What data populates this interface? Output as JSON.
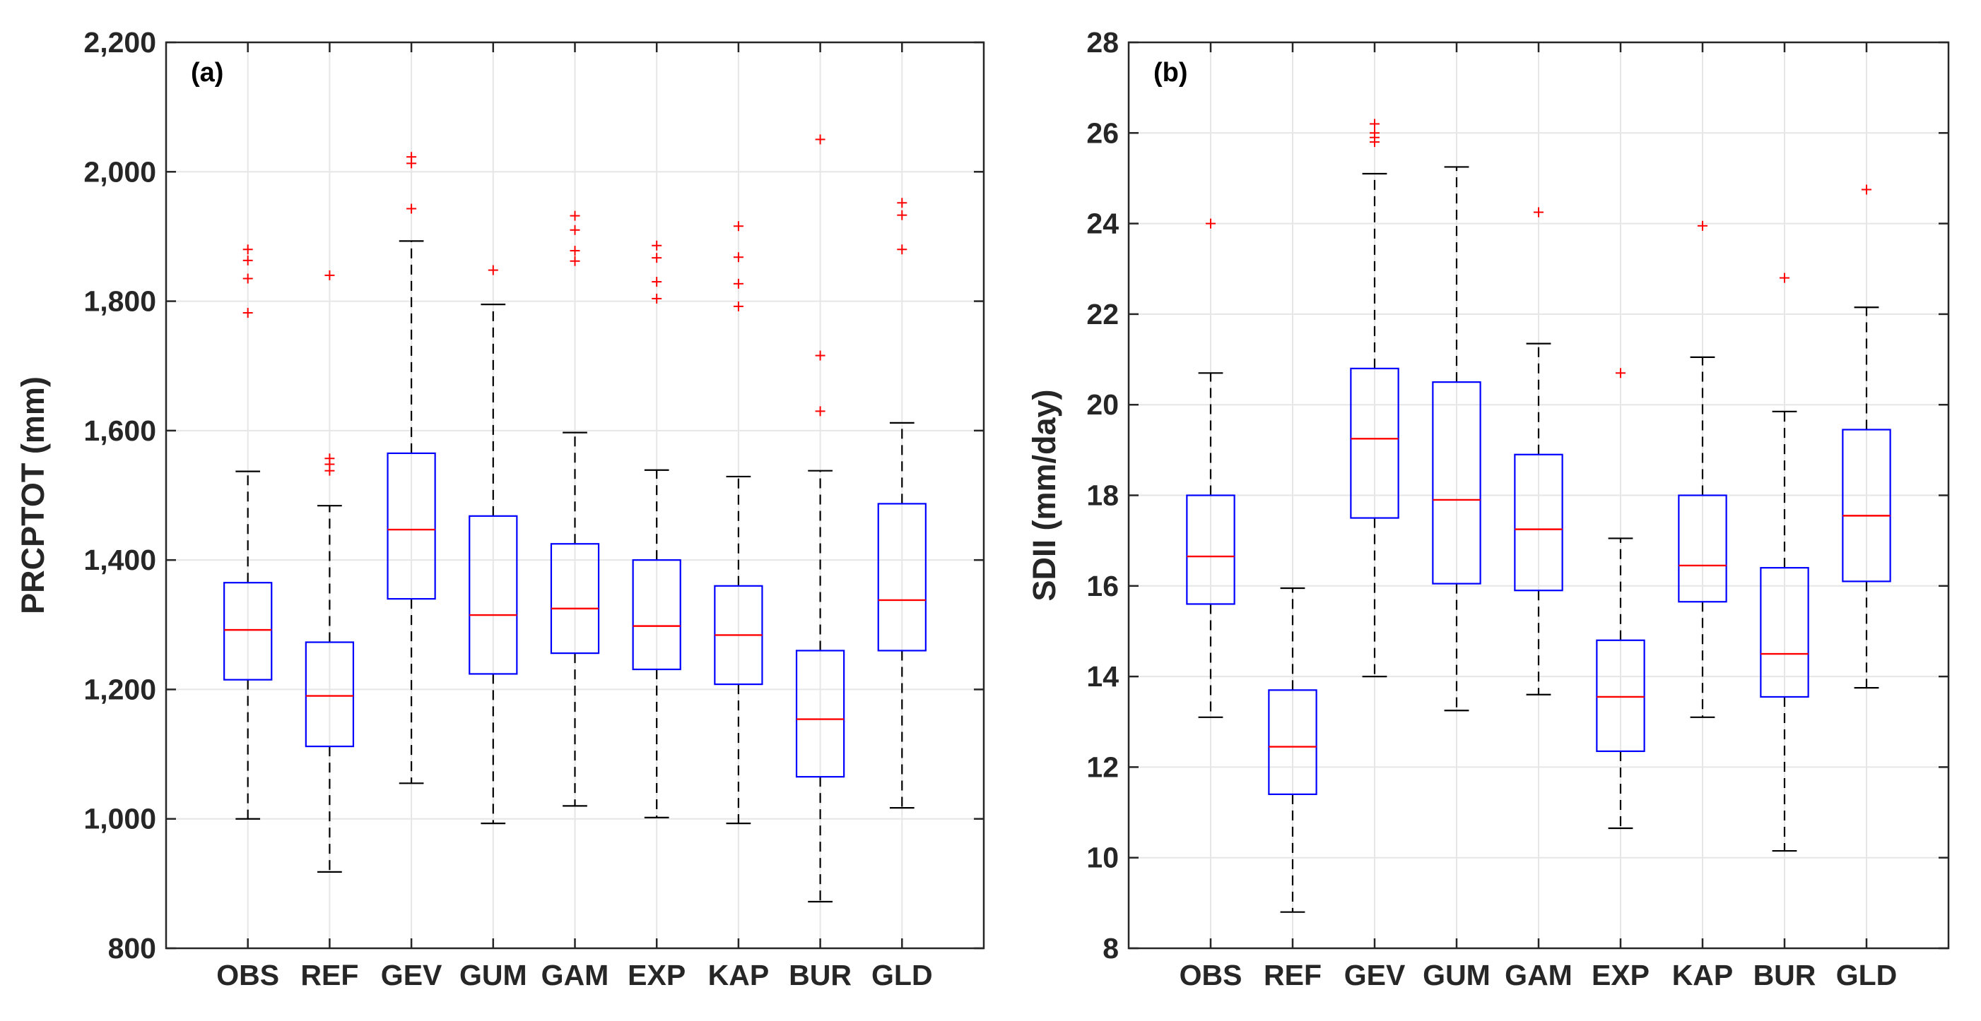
{
  "chart_data": [
    {
      "type": "box",
      "panel_label": "(a)",
      "title": "",
      "xlabel": "",
      "ylabel": "PRCPTOT (mm)",
      "ylim": [
        800,
        2200
      ],
      "yticks": [
        800,
        1000,
        1200,
        1400,
        1600,
        1800,
        2000,
        2200
      ],
      "ytick_labels": [
        "800",
        "1,000",
        "1,200",
        "1,400",
        "1,600",
        "1,800",
        "2,000",
        "2,200"
      ],
      "grid": true,
      "categories": [
        "OBS",
        "REF",
        "GEV",
        "GUM",
        "GAM",
        "EXP",
        "KAP",
        "BUR",
        "GLD"
      ],
      "boxes": [
        {
          "name": "OBS",
          "whisker_low": 1000,
          "q1": 1215,
          "median": 1292,
          "q3": 1365,
          "whisker_high": 1537,
          "outliers": [
            1782,
            1835,
            1863,
            1880
          ]
        },
        {
          "name": "REF",
          "whisker_low": 918,
          "q1": 1112,
          "median": 1190,
          "q3": 1273,
          "whisker_high": 1484,
          "outliers": [
            1538,
            1548,
            1557,
            1840
          ]
        },
        {
          "name": "GEV",
          "whisker_low": 1055,
          "q1": 1340,
          "median": 1447,
          "q3": 1565,
          "whisker_high": 1893,
          "outliers": [
            1943,
            2013,
            2023
          ]
        },
        {
          "name": "GUM",
          "whisker_low": 993,
          "q1": 1224,
          "median": 1315,
          "q3": 1468,
          "whisker_high": 1795,
          "outliers": [
            1848
          ]
        },
        {
          "name": "GAM",
          "whisker_low": 1020,
          "q1": 1256,
          "median": 1325,
          "q3": 1425,
          "whisker_high": 1597,
          "outliers": [
            1862,
            1878,
            1910,
            1932
          ]
        },
        {
          "name": "EXP",
          "whisker_low": 1002,
          "q1": 1231,
          "median": 1298,
          "q3": 1400,
          "whisker_high": 1539,
          "outliers": [
            1804,
            1830,
            1867,
            1886
          ]
        },
        {
          "name": "KAP",
          "whisker_low": 993,
          "q1": 1208,
          "median": 1284,
          "q3": 1360,
          "whisker_high": 1529,
          "outliers": [
            1792,
            1827,
            1868,
            1916
          ]
        },
        {
          "name": "BUR",
          "whisker_low": 872,
          "q1": 1065,
          "median": 1154,
          "q3": 1260,
          "whisker_high": 1538,
          "outliers": [
            1630,
            1716,
            2050
          ]
        },
        {
          "name": "GLD",
          "whisker_low": 1017,
          "q1": 1260,
          "median": 1338,
          "q3": 1487,
          "whisker_high": 1612,
          "outliers": [
            1880,
            1933,
            1952
          ]
        }
      ]
    },
    {
      "type": "box",
      "panel_label": "(b)",
      "title": "",
      "xlabel": "",
      "ylabel": "SDII (mm/day)",
      "ylim": [
        8,
        28
      ],
      "yticks": [
        8,
        10,
        12,
        14,
        16,
        18,
        20,
        22,
        24,
        26,
        28
      ],
      "ytick_labels": [
        "8",
        "10",
        "12",
        "14",
        "16",
        "18",
        "20",
        "22",
        "24",
        "26",
        "28"
      ],
      "grid": true,
      "categories": [
        "OBS",
        "REF",
        "GEV",
        "GUM",
        "GAM",
        "EXP",
        "KAP",
        "BUR",
        "GLD"
      ],
      "boxes": [
        {
          "name": "OBS",
          "whisker_low": 13.1,
          "q1": 15.6,
          "median": 16.65,
          "q3": 18.0,
          "whisker_high": 20.7,
          "outliers": [
            24.0
          ]
        },
        {
          "name": "REF",
          "whisker_low": 8.8,
          "q1": 11.4,
          "median": 12.45,
          "q3": 13.7,
          "whisker_high": 15.95,
          "outliers": []
        },
        {
          "name": "GEV",
          "whisker_low": 14.0,
          "q1": 17.5,
          "median": 19.25,
          "q3": 20.8,
          "whisker_high": 25.1,
          "outliers": [
            25.8,
            25.9,
            26.0,
            26.2
          ]
        },
        {
          "name": "GUM",
          "whisker_low": 13.25,
          "q1": 16.05,
          "median": 17.9,
          "q3": 20.5,
          "whisker_high": 25.25,
          "outliers": []
        },
        {
          "name": "GAM",
          "whisker_low": 13.6,
          "q1": 15.9,
          "median": 17.25,
          "q3": 18.9,
          "whisker_high": 21.35,
          "outliers": [
            24.25
          ]
        },
        {
          "name": "EXP",
          "whisker_low": 10.65,
          "q1": 12.35,
          "median": 13.55,
          "q3": 14.8,
          "whisker_high": 17.05,
          "outliers": [
            20.7
          ]
        },
        {
          "name": "KAP",
          "whisker_low": 13.1,
          "q1": 15.65,
          "median": 16.45,
          "q3": 18.0,
          "whisker_high": 21.05,
          "outliers": [
            23.95
          ]
        },
        {
          "name": "BUR",
          "whisker_low": 10.15,
          "q1": 13.55,
          "median": 14.5,
          "q3": 16.4,
          "whisker_high": 19.85,
          "outliers": [
            22.8
          ]
        },
        {
          "name": "GLD",
          "whisker_low": 13.75,
          "q1": 16.1,
          "median": 17.55,
          "q3": 19.45,
          "whisker_high": 22.15,
          "outliers": [
            24.75
          ]
        }
      ]
    }
  ],
  "colors": {
    "box": "#0000ff",
    "median": "#ff0000",
    "whisker": "#000000",
    "outlier": "#ff0000",
    "grid": "#e6e6e6",
    "axes": "#262626"
  }
}
